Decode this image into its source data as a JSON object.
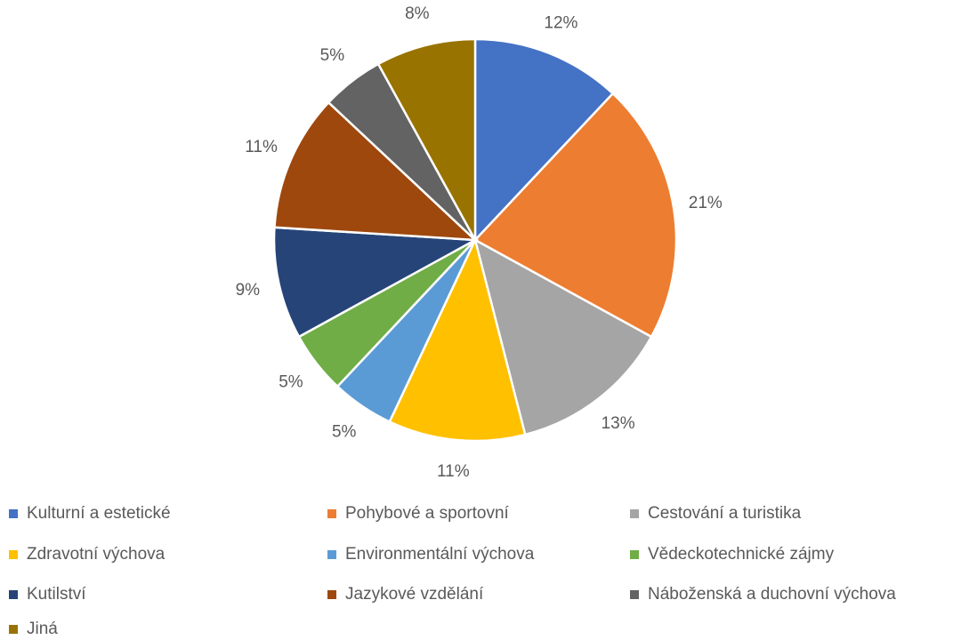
{
  "chart_data": {
    "type": "pie",
    "categories": [
      "Kulturní a estetické",
      "Pohybové a sportovní",
      "Cestování a turistika",
      "Zdravotní výchova",
      "Environmentální výchova",
      "Vědeckotechnické zájmy",
      "Kutilství",
      "Jazykové vzdělání",
      "Náboženská a duchovní výchova",
      "Jiná"
    ],
    "values": [
      12,
      21,
      13,
      11,
      5,
      5,
      9,
      11,
      5,
      8
    ],
    "value_labels": [
      "12%",
      "21%",
      "13%",
      "11%",
      "5%",
      "5%",
      "9%",
      "11%",
      "5%",
      "8%"
    ],
    "colors": [
      "#4472c4",
      "#ed7d31",
      "#a5a5a5",
      "#ffc000",
      "#5b9bd5",
      "#70ad47",
      "#264478",
      "#9e480e",
      "#636363",
      "#997300"
    ],
    "legend": "bottom"
  }
}
